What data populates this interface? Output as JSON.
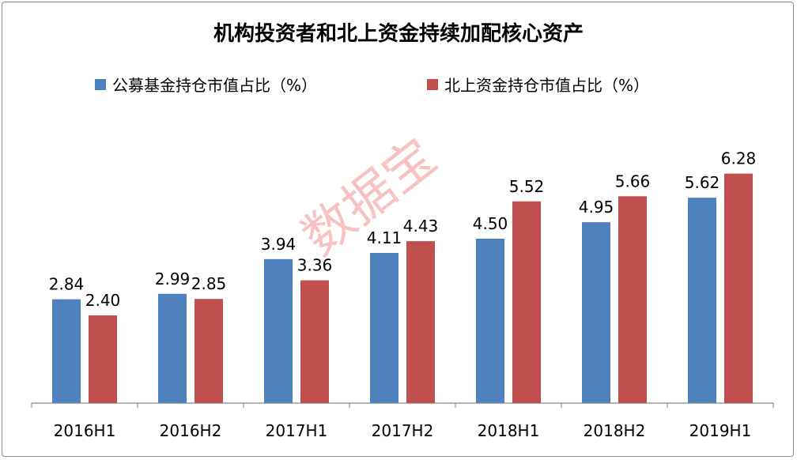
{
  "chart_data": {
    "type": "bar",
    "title": "机构投资者和北上资金持续加配核心资产",
    "categories": [
      "2016H1",
      "2016H2",
      "2017H1",
      "2017H2",
      "2018H1",
      "2018H2",
      "2019H1"
    ],
    "series": [
      {
        "name": "公募基金持仓市值占比（%）",
        "color": "#4f81bd",
        "values": [
          2.84,
          2.99,
          3.94,
          4.11,
          4.5,
          4.95,
          5.62
        ]
      },
      {
        "name": "北上资金持仓市值占比（%）",
        "color": "#c0504d",
        "values": [
          2.4,
          2.85,
          3.36,
          4.43,
          5.52,
          5.66,
          6.28
        ]
      }
    ],
    "ylim": [
      0,
      7.57
    ],
    "legend_position": "top",
    "grid": false
  },
  "watermark": "数据宝"
}
